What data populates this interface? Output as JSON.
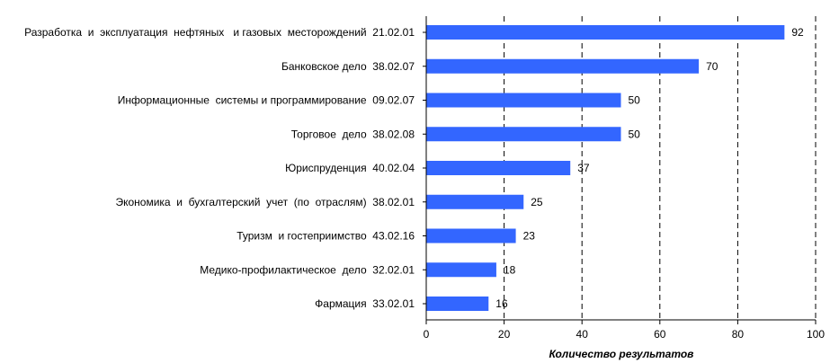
{
  "chart_data": {
    "type": "bar",
    "orientation": "horizontal",
    "categories": [
      "Разработка  и  эксплуатация  нефтяных   и газовых  месторождений  21.02.01",
      "Банковское дело  38.02.07",
      "Информационные  системы и программирование  09.02.07",
      "Торговое  дело  38.02.08",
      "Юриспруденция  40.02.04",
      "Экономика  и  бухгалтерский  учет  (по  отраслям)  38.02.01",
      "Туризм  и гостеприимство  43.02.16",
      "Медико-профилактическое  дело  32.02.01",
      "Фармация  33.02.01"
    ],
    "values": [
      92,
      70,
      50,
      50,
      37,
      25,
      23,
      18,
      16
    ],
    "xlabel": "Количество  результатов",
    "xlim": [
      0,
      100
    ],
    "xticks": [
      "0",
      "20",
      "40",
      "60",
      "80",
      "100"
    ],
    "grid": "vertical-dashed",
    "legend": "none",
    "bar_color": "#3366ff",
    "grid_color": "#000000"
  }
}
